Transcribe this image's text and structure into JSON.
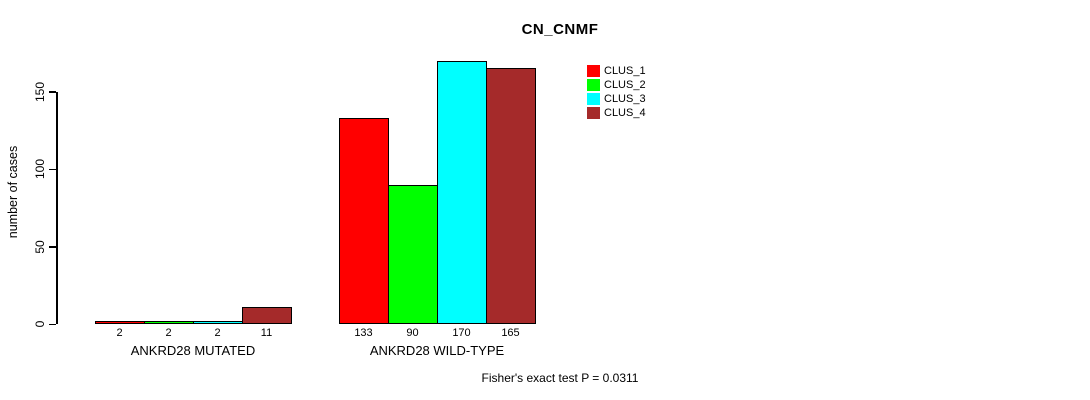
{
  "chart_data": {
    "type": "bar",
    "title": "CN_CNMF",
    "ylabel": "number of cases",
    "xlabel": "",
    "categories": [
      "ANKRD28 MUTATED",
      "ANKRD28 WILD-TYPE"
    ],
    "series": [
      {
        "name": "CLUS_1",
        "color": "#ff0000",
        "values": [
          2,
          133
        ]
      },
      {
        "name": "CLUS_2",
        "color": "#00ff00",
        "values": [
          2,
          90
        ]
      },
      {
        "name": "CLUS_3",
        "color": "#00ffff",
        "values": [
          2,
          170
        ]
      },
      {
        "name": "CLUS_4",
        "color": "#a52a2a",
        "values": [
          11,
          165
        ]
      }
    ],
    "yticks": [
      0,
      50,
      100,
      150
    ],
    "ylim": [
      0,
      172
    ],
    "bar_value_labels_shown": true,
    "grid": false,
    "legend_position": "top-right",
    "annotation": "Fisher's exact test P = 0.0311"
  },
  "colors": {
    "background": "#ffffff",
    "axis": "#000000",
    "bar_border": "#000000",
    "text": "#000000"
  }
}
